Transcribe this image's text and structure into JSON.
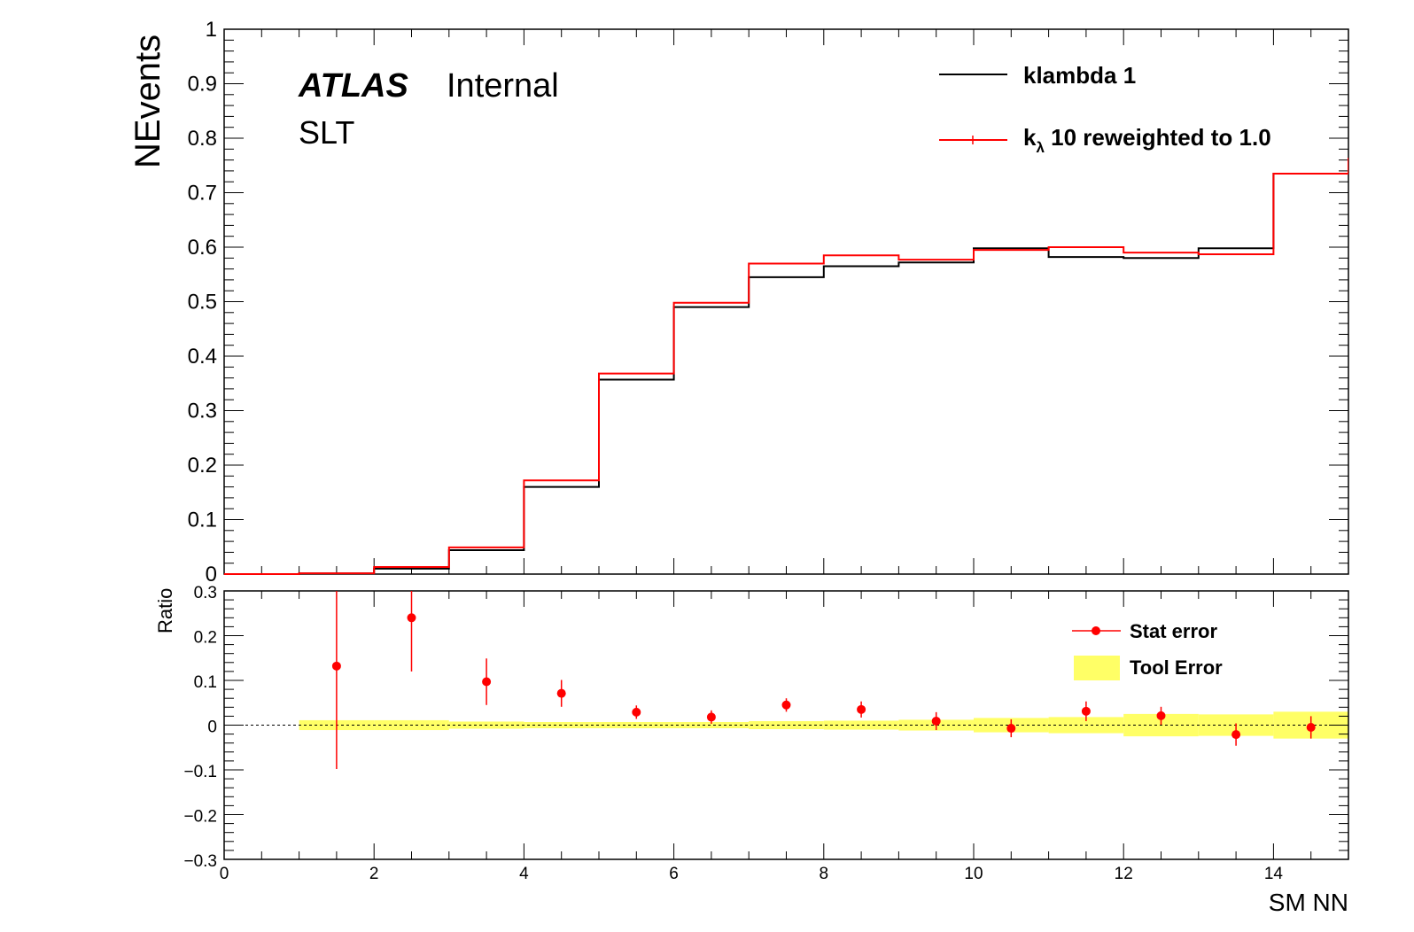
{
  "colors": {
    "nominal": "#000000",
    "reweighted": "#ff0000",
    "tool_band": "#ffff66",
    "frame": "#000000"
  },
  "labels": {
    "atlas": "ATLAS",
    "internal": "Internal",
    "channel": "SLT"
  },
  "legend_top": {
    "nominal": "klambda 1",
    "reweighted_sym": "k",
    "reweighted_sub": "λ",
    "reweighted_rest": " 10 reweighted to 1.0"
  },
  "legend_bottom": {
    "stat": "Stat error",
    "tool": "Tool Error"
  },
  "chart_data": [
    {
      "type": "line",
      "ylabel": "NEvents",
      "xlim": [
        0,
        15
      ],
      "ylim": [
        0,
        1
      ],
      "xticks": [
        0,
        2,
        4,
        6,
        8,
        10,
        12,
        14
      ],
      "yticks": [
        0,
        0.1,
        0.2,
        0.3,
        0.4,
        0.5,
        0.6,
        0.7,
        0.8,
        0.9,
        1
      ],
      "ytick_labels": [
        "0",
        "0.1",
        "0.2",
        "0.3",
        "0.4",
        "0.5",
        "0.6",
        "0.7",
        "0.8",
        "0.9",
        "1"
      ],
      "bin_edges": [
        0,
        1,
        2,
        3,
        4,
        5,
        6,
        7,
        8,
        9,
        10,
        11,
        12,
        13,
        14,
        15
      ],
      "series": [
        {
          "name": "klambda 1",
          "values": [
            0.0,
            0.0012,
            0.01,
            0.044,
            0.16,
            0.357,
            0.49,
            0.545,
            0.565,
            0.572,
            0.598,
            0.582,
            0.58,
            0.598,
            0.735,
            0.762
          ]
        },
        {
          "name": "kλ 10 reweighted to 1.0",
          "values": [
            0.0,
            0.0014,
            0.013,
            0.049,
            0.172,
            0.368,
            0.498,
            0.57,
            0.585,
            0.577,
            0.595,
            0.6,
            0.59,
            0.587,
            0.735,
            0.764
          ]
        }
      ]
    },
    {
      "type": "scatter",
      "ylabel": "Ratio",
      "xlabel": "SM NN",
      "xlim": [
        0,
        15
      ],
      "ylim": [
        -0.3,
        0.3
      ],
      "xticks": [
        0,
        2,
        4,
        6,
        8,
        10,
        12,
        14
      ],
      "xtick_labels": [
        "0",
        "2",
        "4",
        "6",
        "8",
        "10",
        "12",
        "14"
      ],
      "yticks": [
        -0.3,
        -0.2,
        -0.1,
        0,
        0.1,
        0.2,
        0.3
      ],
      "ytick_labels": [
        "−0.3",
        "−0.2",
        "−0.1",
        "0",
        "0.1",
        "0.2",
        "0.3"
      ],
      "series": [
        {
          "name": "Stat error",
          "x": [
            1.5,
            2.5,
            3.5,
            4.5,
            5.5,
            6.5,
            7.5,
            8.5,
            9.5,
            10.5,
            11.5,
            12.5,
            13.5,
            14.5
          ],
          "y": [
            0.132,
            0.24,
            0.097,
            0.071,
            0.029,
            0.018,
            0.045,
            0.035,
            0.009,
            -0.007,
            0.031,
            0.021,
            -0.021,
            -0.005
          ],
          "err": [
            0.23,
            0.12,
            0.052,
            0.03,
            0.015,
            0.015,
            0.015,
            0.018,
            0.02,
            0.02,
            0.022,
            0.02,
            0.025,
            0.025
          ]
        },
        {
          "name": "Tool Error",
          "bin_edges": [
            1,
            2,
            3,
            4,
            5,
            6,
            7,
            8,
            9,
            10,
            11,
            12,
            13,
            14,
            15
          ],
          "band_half_width": [
            0.011,
            0.011,
            0.008,
            0.007,
            0.007,
            0.007,
            0.009,
            0.01,
            0.012,
            0.016,
            0.018,
            0.025,
            0.024,
            0.03,
            0.04
          ]
        }
      ]
    }
  ]
}
